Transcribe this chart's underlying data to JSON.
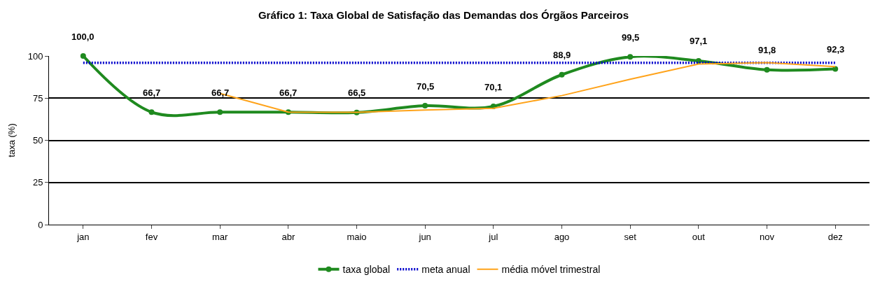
{
  "chart_data": {
    "type": "line",
    "title": "Gráfico 1: Taxa Global de Satisfação das Demandas dos Órgãos Parceiros",
    "ylabel": "taxa (%)",
    "categories": [
      "jan",
      "fev",
      "mar",
      "abr",
      "maio",
      "jun",
      "jul",
      "ago",
      "set",
      "out",
      "nov",
      "dez"
    ],
    "series": [
      {
        "name": "taxa global",
        "color": "#1f8a1f",
        "marker": "circle",
        "line_style": "solid",
        "values": [
          100.0,
          66.7,
          66.7,
          66.7,
          66.5,
          70.5,
          70.1,
          88.9,
          99.5,
          97.1,
          91.8,
          92.3
        ],
        "value_labels": [
          "100,0",
          "66,7",
          "66,7",
          "66,7",
          "66,5",
          "70,5",
          "70,1",
          "88,9",
          "99,5",
          "97,1",
          "91,8",
          "92,3"
        ]
      },
      {
        "name": "meta anual",
        "color": "#0000cc",
        "marker": "none",
        "line_style": "dotted",
        "values": [
          96,
          96,
          96,
          96,
          96,
          96,
          96,
          96,
          96,
          96,
          96,
          96
        ]
      },
      {
        "name": "média móvel trimestral",
        "color": "#ffa31a",
        "marker": "none",
        "line_style": "solid",
        "values": [
          null,
          null,
          77.8,
          66.7,
          66.6,
          67.9,
          69.0,
          76.5,
          86.2,
          95.2,
          96.1,
          93.7
        ]
      }
    ],
    "ylim": [
      0,
      100
    ],
    "yticks": [
      0,
      25,
      50,
      75,
      100
    ],
    "grid": "y",
    "legend": "bottom"
  }
}
